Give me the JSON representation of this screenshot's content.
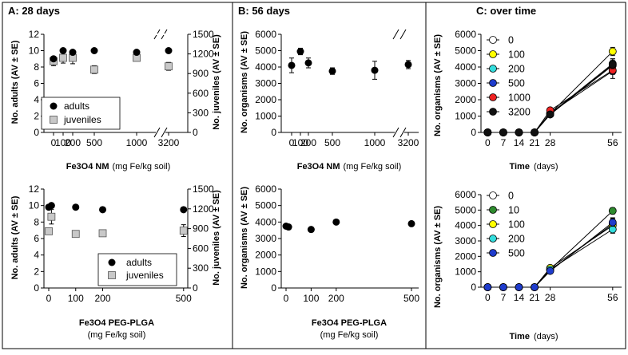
{
  "panel_a": {
    "title": "A: 28 days",
    "top": {
      "ylabel_left": "No. adults (AV ± SE)",
      "ylabel_right": "No. juveniles (AV ± SE)",
      "xlabel_bold": "Fe3O4 NM",
      "xlabel_normal": "(mg Fe/kg soil)",
      "legend": [
        "adults",
        "juveniles"
      ]
    },
    "bottom": {
      "ylabel_left": "No. adults (AV ± SE)",
      "ylabel_right": "No. juveniles (AV ± SE)",
      "xlabel_line1": "Fe3O4 PEG-PLGA",
      "xlabel_line2": "(mg Fe/kg soil)",
      "legend": [
        "adults",
        "juveniles"
      ]
    }
  },
  "panel_b": {
    "title": "B: 56 days",
    "top": {
      "ylabel": "No. organisms (AV ± SE)",
      "xlabel_bold": "Fe3O4 NM",
      "xlabel_normal": "(mg Fe/kg soil)"
    },
    "bottom": {
      "ylabel": "No. organisms (AV ± SE)",
      "xlabel_line1": "Fe3O4 PEG-PLGA",
      "xlabel_line2": "(mg Fe/kg soil)"
    }
  },
  "panel_c": {
    "title": "C: over time",
    "top": {
      "ylabel": "No. organisms (AV ± SE)",
      "xlabel_bold": "Time",
      "xlabel_normal": "(days)"
    },
    "bottom": {
      "ylabel": "No. organisms (AV ± SE)",
      "xlabel_bold": "Time",
      "xlabel_normal": "(days)"
    }
  },
  "chart_data": [
    {
      "id": "A-top",
      "type": "scatter",
      "title": "A: 28 days",
      "xlabel": "Fe3O4 NM (mg Fe/kg soil)",
      "ylabel": "No. adults (AV ± SE)",
      "y2label": "No. juveniles (AV ± SE)",
      "ylim": [
        0,
        12
      ],
      "y2lim": [
        0,
        1500
      ],
      "yticks": [
        0,
        2,
        4,
        6,
        8,
        10,
        12
      ],
      "y2ticks": [
        0,
        300,
        600,
        900,
        1200,
        1500
      ],
      "x_tick_labels": [
        "0",
        "100",
        "200",
        "500",
        "1000",
        "3200"
      ],
      "axis_break": "between 1000 and 3200",
      "series": [
        {
          "name": "adults",
          "axis": "left",
          "x": [
            "0",
            "100",
            "200",
            "500",
            "1000",
            "3200"
          ],
          "values": [
            9.0,
            10.0,
            9.8,
            10.0,
            9.8,
            10.0
          ],
          "errors": [
            0.2,
            0,
            0.1,
            0,
            0.1,
            0
          ]
        },
        {
          "name": "juveniles",
          "axis": "right",
          "x": [
            "0",
            "100",
            "200",
            "500",
            "1000",
            "3200"
          ],
          "values": [
            1090,
            1140,
            1140,
            960,
            1140,
            1010
          ],
          "errors": [
            70,
            80,
            90,
            60,
            30,
            60
          ]
        }
      ]
    },
    {
      "id": "A-bottom",
      "type": "scatter",
      "xlabel": "Fe3O4 PEG-PLGA (mg Fe/kg soil)",
      "ylabel": "No. adults (AV ± SE)",
      "y2label": "No. juveniles (AV ± SE)",
      "ylim": [
        0,
        12
      ],
      "y2lim": [
        0,
        1500
      ],
      "yticks": [
        0,
        2,
        4,
        6,
        8,
        10,
        12
      ],
      "y2ticks": [
        0,
        300,
        600,
        900,
        1200,
        1500
      ],
      "xticks": [
        0,
        100,
        200,
        500
      ],
      "xlim": [
        -10,
        510
      ],
      "series": [
        {
          "name": "adults",
          "axis": "left",
          "x": [
            0,
            10,
            100,
            200,
            500
          ],
          "values": [
            9.8,
            10.0,
            9.8,
            9.5,
            9.5
          ],
          "errors": [
            0.2,
            0.1,
            0,
            0,
            0
          ]
        },
        {
          "name": "juveniles",
          "axis": "right",
          "x": [
            0,
            10,
            100,
            200,
            500
          ],
          "values": [
            860,
            1080,
            820,
            830,
            870
          ],
          "errors": [
            20,
            110,
            0,
            0,
            90
          ]
        }
      ]
    },
    {
      "id": "B-top",
      "type": "scatter",
      "title": "B: 56 days",
      "xlabel": "Fe3O4 NM (mg Fe/kg soil)",
      "ylabel": "No. organisms (AV ± SE)",
      "ylim": [
        0,
        6000
      ],
      "yticks": [
        0,
        1000,
        2000,
        3000,
        4000,
        5000,
        6000
      ],
      "x_tick_labels": [
        "0",
        "100",
        "200",
        "500",
        "1000",
        "3200"
      ],
      "axis_break": "between 1000 and 3200",
      "series": [
        {
          "name": "organisms",
          "x": [
            "0",
            "100",
            "200",
            "500",
            "1000",
            "3200"
          ],
          "values": [
            4100,
            4950,
            4250,
            3750,
            3800,
            4150
          ],
          "errors": [
            450,
            200,
            300,
            200,
            550,
            250
          ]
        }
      ]
    },
    {
      "id": "B-bottom",
      "type": "scatter",
      "xlabel": "Fe3O4 PEG-PLGA (mg Fe/kg soil)",
      "ylabel": "No. organisms (AV ± SE)",
      "ylim": [
        0,
        6000
      ],
      "yticks": [
        0,
        1000,
        2000,
        3000,
        4000,
        5000,
        6000
      ],
      "xticks": [
        0,
        100,
        200,
        500
      ],
      "xlim": [
        -10,
        510
      ],
      "series": [
        {
          "name": "organisms",
          "x": [
            0,
            10,
            100,
            200,
            500
          ],
          "values": [
            3750,
            3700,
            3550,
            4000,
            3900
          ],
          "errors": [
            100,
            150,
            80,
            80,
            80
          ]
        }
      ]
    },
    {
      "id": "C-top",
      "type": "line",
      "title": "C: over time",
      "xlabel": "Time (days)",
      "ylabel": "No. organisms (AV ± SE)",
      "ylim": [
        0,
        6000
      ],
      "yticks": [
        0,
        1000,
        2000,
        3000,
        4000,
        5000,
        6000
      ],
      "xlim": [
        -3,
        60
      ],
      "xticks": [
        0,
        7,
        14,
        21,
        28,
        56
      ],
      "x": [
        0,
        7,
        14,
        21,
        28,
        56
      ],
      "series": [
        {
          "name": "0",
          "color": "#ffffff",
          "values": [
            0,
            0,
            0,
            0,
            1100,
            4100
          ],
          "err56": 400
        },
        {
          "name": "100",
          "color": "#ffff00",
          "values": [
            0,
            0,
            0,
            0,
            1150,
            4950
          ],
          "err56": 250
        },
        {
          "name": "200",
          "color": "#33dddd",
          "values": [
            0,
            0,
            0,
            0,
            1150,
            4200
          ],
          "err56": 300
        },
        {
          "name": "500",
          "color": "#1f3ccc",
          "values": [
            0,
            0,
            0,
            0,
            1200,
            3750
          ],
          "err56": 200
        },
        {
          "name": "1000",
          "color": "#ee2222",
          "values": [
            0,
            0,
            0,
            0,
            1350,
            3800
          ],
          "err56": 500
        },
        {
          "name": "3200",
          "color": "#111111",
          "values": [
            0,
            0,
            0,
            0,
            1100,
            4150
          ],
          "err56": 250
        }
      ]
    },
    {
      "id": "C-bottom",
      "type": "line",
      "xlabel": "Time (days)",
      "ylabel": "No. organisms (AV ± SE)",
      "ylim": [
        0,
        6000
      ],
      "yticks": [
        0,
        1000,
        2000,
        3000,
        4000,
        5000,
        6000
      ],
      "xlim": [
        -3,
        60
      ],
      "xticks": [
        0,
        7,
        14,
        21,
        28,
        56
      ],
      "x": [
        0,
        7,
        14,
        21,
        28,
        56
      ],
      "series": [
        {
          "name": "0",
          "color": "#ffffff",
          "values": [
            0,
            0,
            0,
            0,
            1100,
            4100
          ],
          "err56": 400
        },
        {
          "name": "10",
          "color": "#2e8b2e",
          "values": [
            0,
            0,
            0,
            0,
            1150,
            4950
          ],
          "err56": 200
        },
        {
          "name": "100",
          "color": "#ffff00",
          "values": [
            0,
            0,
            0,
            0,
            1250,
            4000
          ],
          "err56": 300
        },
        {
          "name": "200",
          "color": "#33dddd",
          "values": [
            0,
            0,
            0,
            0,
            1150,
            3750
          ],
          "err56": 250
        },
        {
          "name": "500",
          "color": "#1f3ccc",
          "values": [
            0,
            0,
            0,
            0,
            1050,
            4200
          ],
          "err56": 250
        }
      ]
    }
  ]
}
